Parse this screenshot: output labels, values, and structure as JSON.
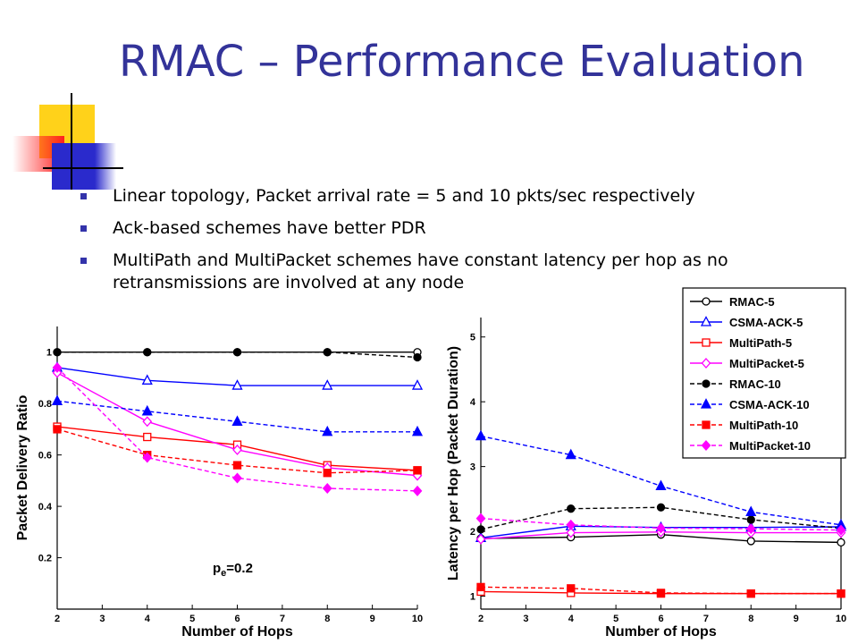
{
  "slide": {
    "title": "RMAC – Performance Evaluation",
    "bullets": [
      "Linear topology, Packet arrival rate = 5 and 10 pkts/sec respectively",
      "Ack-based schemes have better PDR",
      "MultiPath and MultiPacket schemes have constant latency per hop as no retransmissions are involved at any node"
    ],
    "accent_color": "#333399"
  },
  "chart_data": [
    {
      "type": "line",
      "xlabel": "Number of Hops",
      "ylabel": "Packet Delivery Ratio",
      "annotation_main": "p",
      "annotation_sub": "e",
      "annotation_rest": "=0.2",
      "xlim": [
        2,
        10
      ],
      "ylim": [
        0,
        1.1
      ],
      "xticks": [
        "2",
        "3",
        "4",
        "5",
        "6",
        "7",
        "8",
        "9",
        "10"
      ],
      "yticks": [
        "0.2",
        "0.4",
        "0.6",
        "0.8",
        "1"
      ],
      "x": [
        2,
        4,
        6,
        8,
        10
      ],
      "series": [
        {
          "name": "RMAC-5",
          "color": "#000000",
          "dash": false,
          "marker": "circle-open",
          "values": [
            1.0,
            1.0,
            1.0,
            1.0,
            1.0
          ]
        },
        {
          "name": "CSMA-ACK-5",
          "color": "#0000ff",
          "dash": false,
          "marker": "triangle-open",
          "values": [
            0.94,
            0.89,
            0.87,
            0.87,
            0.87
          ]
        },
        {
          "name": "MultiPath-5",
          "color": "#ff0000",
          "dash": false,
          "marker": "square-open",
          "values": [
            0.71,
            0.67,
            0.64,
            0.56,
            0.54
          ]
        },
        {
          "name": "MultiPacket-5",
          "color": "#ff00ff",
          "dash": false,
          "marker": "diamond-open",
          "values": [
            0.92,
            0.73,
            0.62,
            0.55,
            0.52
          ]
        },
        {
          "name": "RMAC-10",
          "color": "#000000",
          "dash": true,
          "marker": "circle-filled",
          "values": [
            1.0,
            1.0,
            1.0,
            1.0,
            0.98
          ]
        },
        {
          "name": "CSMA-ACK-10",
          "color": "#0000ff",
          "dash": true,
          "marker": "triangle-filled",
          "values": [
            0.81,
            0.77,
            0.73,
            0.69,
            0.69
          ]
        },
        {
          "name": "MultiPath-10",
          "color": "#ff0000",
          "dash": true,
          "marker": "square-filled",
          "values": [
            0.7,
            0.6,
            0.56,
            0.53,
            0.54
          ]
        },
        {
          "name": "MultiPacket-10",
          "color": "#ff00ff",
          "dash": true,
          "marker": "diamond-filled",
          "values": [
            0.94,
            0.59,
            0.51,
            0.47,
            0.46
          ]
        }
      ]
    },
    {
      "type": "line",
      "xlabel": "Number of Hops",
      "ylabel": "Latency per Hop (Packet Duration)",
      "xlim": [
        2,
        10
      ],
      "ylim": [
        0.8,
        5.3
      ],
      "xticks": [
        "2",
        "3",
        "4",
        "5",
        "6",
        "7",
        "8",
        "9",
        "10"
      ],
      "yticks": [
        "1",
        "2",
        "3",
        "4",
        "5"
      ],
      "legend_position": "top-right",
      "x": [
        2,
        4,
        6,
        8,
        10
      ],
      "series": [
        {
          "name": "RMAC-5",
          "color": "#000000",
          "dash": false,
          "marker": "circle-open",
          "values": [
            1.89,
            1.91,
            1.95,
            1.85,
            1.83
          ]
        },
        {
          "name": "CSMA-ACK-5",
          "color": "#0000ff",
          "dash": false,
          "marker": "triangle-open",
          "values": [
            1.9,
            2.08,
            2.06,
            2.06,
            2.07
          ]
        },
        {
          "name": "MultiPath-5",
          "color": "#ff0000",
          "dash": false,
          "marker": "square-open",
          "values": [
            1.07,
            1.05,
            1.04,
            1.04,
            1.04
          ]
        },
        {
          "name": "MultiPacket-5",
          "color": "#ff00ff",
          "dash": false,
          "marker": "diamond-open",
          "values": [
            1.88,
            1.98,
            1.99,
            1.98,
            1.98
          ]
        },
        {
          "name": "RMAC-10",
          "color": "#000000",
          "dash": true,
          "marker": "circle-filled",
          "values": [
            2.03,
            2.35,
            2.37,
            2.18,
            2.05
          ]
        },
        {
          "name": "CSMA-ACK-10",
          "color": "#0000ff",
          "dash": true,
          "marker": "triangle-filled",
          "values": [
            3.47,
            3.18,
            2.7,
            2.3,
            2.1
          ]
        },
        {
          "name": "MultiPath-10",
          "color": "#ff0000",
          "dash": true,
          "marker": "square-filled",
          "values": [
            1.14,
            1.12,
            1.05,
            1.04,
            1.04
          ]
        },
        {
          "name": "MultiPacket-10",
          "color": "#ff00ff",
          "dash": true,
          "marker": "diamond-filled",
          "values": [
            2.2,
            2.1,
            2.05,
            2.04,
            2.02
          ]
        }
      ]
    }
  ]
}
